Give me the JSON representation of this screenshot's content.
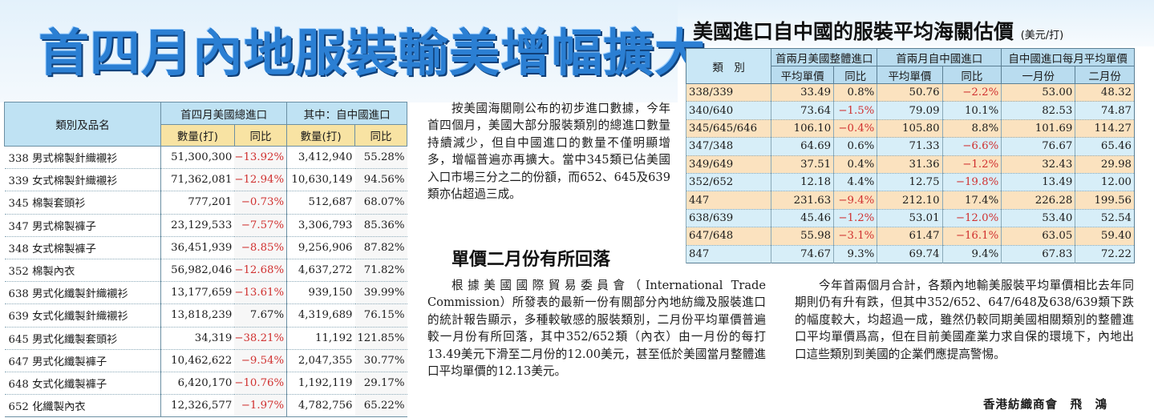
{
  "headline": "首四月內地服裝輸美增幅擴大",
  "right_title": "美國進口自中國的服裝平均海關估價",
  "right_unit": "(美元/打)",
  "left_table": {
    "cat_header": "類別及品名",
    "group1": "首四月美國總進口",
    "group2": "其中：自中國進口",
    "col_qty": "數量(打)",
    "col_yoy": "同比",
    "rows": [
      [
        "338 男式棉製針織襯衫",
        "51,300,300",
        "−13.92%",
        "3,412,940",
        "55.28%"
      ],
      [
        "339 女式棉製針織襯衫",
        "71,362,081",
        "−12.94%",
        "10,630,149",
        "94.56%"
      ],
      [
        "345 棉製套頭衫",
        "777,201",
        "−0.73%",
        "512,687",
        "68.07%"
      ],
      [
        "347 男式棉製褲子",
        "23,129,533",
        "−7.57%",
        "3,306,793",
        "85.36%"
      ],
      [
        "348 女式棉製褲子",
        "36,451,939",
        "−8.85%",
        "9,256,906",
        "87.82%"
      ],
      [
        "352 棉製內衣",
        "56,982,046",
        "−12.68%",
        "4,637,272",
        "71.82%"
      ],
      [
        "638 男式化纖製針織襯衫",
        "13,177,659",
        "−13.61%",
        "939,150",
        "39.99%"
      ],
      [
        "639 女式化纖製針織襯衫",
        "13,818,239",
        "7.67%",
        "4,319,689",
        "76.15%"
      ],
      [
        "645 男式化纖製套頭衫",
        "34,319",
        "−38.21%",
        "11,192",
        "121.85%"
      ],
      [
        "647 男式化纖製褲子",
        "10,462,622",
        "−9.54%",
        "2,047,355",
        "30.77%"
      ],
      [
        "648 女式化纖製褲子",
        "6,420,170",
        "−10.76%",
        "1,192,119",
        "29.17%"
      ],
      [
        "652 化纖製內衣",
        "12,326,577",
        "−1.97%",
        "4,782,756",
        "65.22%"
      ]
    ]
  },
  "right_table": {
    "cat_header": "類　別",
    "group1": "首兩月美國整體進口",
    "group2": "首兩月自中國進口",
    "group3": "自中國進口每月平均單價",
    "col_price": "平均單價",
    "col_yoy": "同比",
    "col_jan": "一月份",
    "col_feb": "二月份",
    "rows": [
      [
        "338/339",
        "33.49",
        "0.8%",
        "50.76",
        "−2.2%",
        "53.00",
        "48.32"
      ],
      [
        "340/640",
        "73.64",
        "−1.5%",
        "79.09",
        "10.1%",
        "82.53",
        "74.87"
      ],
      [
        "345/645/646",
        "106.10",
        "−0.4%",
        "105.80",
        "8.8%",
        "101.69",
        "114.27"
      ],
      [
        "347/348",
        "64.69",
        "0.6%",
        "71.33",
        "−6.6%",
        "76.67",
        "65.46"
      ],
      [
        "349/649",
        "37.51",
        "0.4%",
        "31.36",
        "−1.2%",
        "32.43",
        "29.98"
      ],
      [
        "352/652",
        "12.18",
        "4.4%",
        "12.75",
        "−19.8%",
        "13.49",
        "12.00"
      ],
      [
        "447",
        "231.63",
        "−9.4%",
        "212.10",
        "17.4%",
        "226.28",
        "199.56"
      ],
      [
        "638/639",
        "45.46",
        "−1.2%",
        "53.01",
        "−12.0%",
        "53.40",
        "52.54"
      ],
      [
        "647/648",
        "55.98",
        "−3.1%",
        "61.47",
        "−16.1%",
        "63.05",
        "59.40"
      ],
      [
        "847",
        "74.67",
        "9.3%",
        "69.74",
        "9.4%",
        "67.83",
        "72.22"
      ]
    ]
  },
  "paragraph1": "按美國海關剛公布的初步進口數據，今年首四個月，美國大部分服裝類別的總進口數量持續減少，但自中國進口的數量不僅明顯增多，增幅普遍亦再擴大。當中345類已佔美國入口市場三分之二的份額，而652、645及639類亦佔超過三成。",
  "subheading": "單價二月份有所回落",
  "paragraph2": "根據美國國際貿易委員會（International Trade Commission）所發表的最新一份有關部分內地紡織及服裝進口的統計報告顯示，多種較敏感的服裝類別，二月份平均單價普遍較一月份有所回落，其中352/652類（內衣）由一月份的每打13.49美元下滑至二月份的12.00美元，甚至低於美國當月整體進口平均單價的12.13美元。",
  "paragraph3": "今年首兩個月合計，各類內地輸美服裝平均單價相比去年同期則仍有升有跌，但其中352/652、647/648及638/639類下跌的幅度較大，均超過一成，雖然仍較同期美國相關類別的整體進口平均單價爲高，但在目前美國產業力求自保的環境下，內地出口這些類別到美國的企業們應提高警惕。",
  "byline": "香港紡織商會　飛　鴻"
}
